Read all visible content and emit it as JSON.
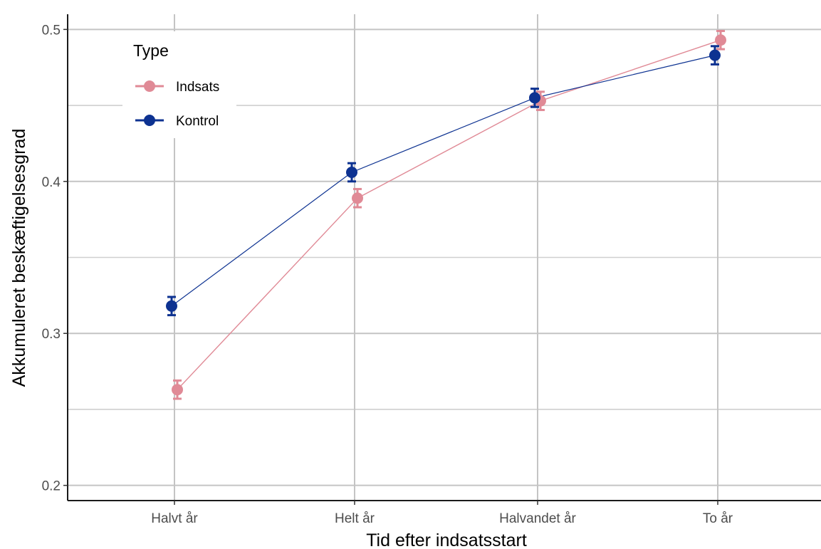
{
  "chart_data": {
    "type": "line",
    "title": "",
    "xlabel": "Tid efter indsatsstart",
    "ylabel": "Akkumuleret beskæftigelsesgrad",
    "categories": [
      "Halvt år",
      "Helt år",
      "Halvandet år",
      "To år"
    ],
    "ylim": [
      0.19,
      0.51
    ],
    "yticks": [
      0.2,
      0.3,
      0.4,
      0.5
    ],
    "ytick_labels": [
      "0.2",
      "0.3",
      "0.4",
      "0.5"
    ],
    "grid": true,
    "legend": {
      "title": "Type",
      "position": "top-left"
    },
    "series": [
      {
        "name": "Indsats",
        "color": "#E08A96",
        "values": [
          0.263,
          0.389,
          0.453,
          0.493
        ],
        "error": [
          0.006,
          0.006,
          0.006,
          0.006
        ]
      },
      {
        "name": "Kontrol",
        "color": "#0D3291",
        "values": [
          0.318,
          0.406,
          0.455,
          0.483
        ],
        "error": [
          0.006,
          0.006,
          0.006,
          0.006
        ]
      }
    ]
  }
}
